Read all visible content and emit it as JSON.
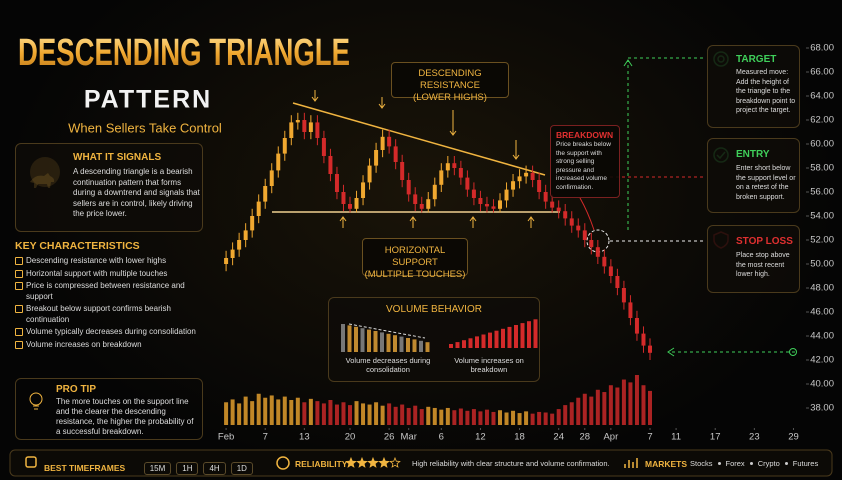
{
  "header": {
    "title": "DESCENDING TRIANGLE",
    "subtitle": "PATTERN",
    "tagline": "When Sellers Take Control"
  },
  "what_it_signals": {
    "title": "WHAT IT SIGNALS",
    "text": "A descending triangle is a bearish continuation pattern that forms during a downtrend and signals that sellers are in control, likely driving the price lower."
  },
  "key_characteristics": {
    "title": "KEY CHARACTERISTICS",
    "items": [
      "Descending resistance with lower highs",
      "Horizontal support with multiple touches",
      "Price is compressed between resistance and support",
      "Breakout below support confirms bearish continuation",
      "Volume typically decreases during consolidation",
      "Volume increases on breakdown"
    ]
  },
  "pro_tip": {
    "title": "PRO TIP",
    "text": "The more touches on the support line and the clearer the descending resistance, the higher the probability of a successful breakdown."
  },
  "annotations": {
    "resistance": [
      "DESCENDING RESISTANCE",
      "(LOWER HIGHS)"
    ],
    "support": [
      "HORIZONTAL SUPPORT",
      "(MULTIPLE TOUCHES)"
    ],
    "breakdown": {
      "title": "BREAKDOWN",
      "text": "Price breaks below the support with strong selling pressure and increased volume confirmation."
    },
    "volume_behavior": {
      "title": "VOLUME BEHAVIOR",
      "left": "Volume decreases during consolidation",
      "right": "Volume increases on breakdown"
    }
  },
  "trade_levels": [
    {
      "title": "TARGET",
      "text": "Measured move: Add the height of the triangle to the breakdown point to project the target."
    },
    {
      "title": "ENTRY",
      "text": "Enter short below the support level or on a retest of the broken support."
    },
    {
      "title": "STOP LOSS",
      "text": "Place stop above the most recent lower high."
    }
  ],
  "footer": {
    "timeframes_title": "BEST TIMEFRAMES",
    "timeframes": [
      "15M",
      "1H",
      "4H",
      "1D"
    ],
    "reliability_title": "RELIABILITY",
    "reliability_stars": 4,
    "reliability_scale": 5,
    "reliability_text": "High reliability with clear structure and volume confirmation.",
    "markets_title": "MARKETS",
    "markets": [
      "Stocks",
      "Forex",
      "Crypto",
      "Futures"
    ]
  },
  "chart_data": {
    "type": "candlestick",
    "up_color": "#f0a830",
    "down_color": "#d42a2a",
    "x": [
      0,
      1,
      2,
      3,
      4,
      5,
      6,
      7,
      8,
      9,
      10,
      11,
      12,
      13,
      14,
      15,
      16,
      17,
      18,
      19,
      20,
      21,
      22,
      23,
      24,
      25,
      26,
      27,
      28,
      29,
      30,
      31,
      32,
      33,
      34,
      35,
      36,
      37,
      38,
      39,
      40,
      41,
      42,
      43,
      44,
      45,
      46,
      47,
      48,
      49,
      50,
      51,
      52,
      53,
      54,
      55,
      56,
      57,
      58,
      59,
      60,
      61,
      62,
      63,
      64,
      65
    ],
    "open": [
      50.0,
      50.5,
      51.2,
      52.0,
      52.8,
      54.0,
      55.2,
      56.5,
      57.8,
      59.2,
      60.5,
      61.8,
      62.0,
      61.0,
      61.8,
      60.5,
      59.0,
      57.5,
      56.0,
      55.0,
      54.6,
      55.5,
      56.8,
      58.2,
      59.5,
      60.6,
      59.8,
      58.5,
      57.0,
      55.8,
      55.0,
      54.6,
      55.4,
      56.6,
      57.8,
      58.4,
      58.0,
      57.2,
      56.2,
      55.5,
      55.0,
      54.8,
      54.6,
      55.3,
      56.2,
      56.9,
      57.3,
      57.6,
      57.0,
      56.0,
      55.2,
      54.7,
      54.4,
      53.8,
      53.2,
      52.8,
      52.0,
      51.4,
      50.6,
      49.8,
      49.0,
      48.0,
      46.8,
      45.5,
      44.2,
      43.2
    ],
    "high": [
      51.1,
      51.8,
      52.6,
      53.4,
      54.6,
      55.8,
      57.1,
      58.4,
      59.8,
      61.1,
      62.4,
      62.6,
      62.6,
      62.4,
      62.4,
      61.1,
      59.6,
      58.1,
      56.6,
      55.6,
      56.1,
      57.4,
      58.8,
      60.1,
      61.2,
      61.2,
      60.4,
      59.1,
      57.6,
      56.4,
      55.6,
      56.0,
      57.2,
      58.4,
      59.0,
      59.0,
      58.6,
      57.8,
      56.8,
      56.1,
      55.6,
      55.4,
      55.9,
      56.8,
      57.5,
      57.9,
      58.2,
      58.2,
      57.6,
      56.6,
      55.8,
      55.3,
      55.0,
      54.4,
      53.8,
      53.4,
      52.6,
      52.0,
      51.2,
      50.4,
      49.6,
      48.6,
      47.4,
      46.1,
      44.8,
      43.8
    ],
    "low": [
      49.4,
      49.9,
      50.6,
      51.4,
      52.2,
      53.4,
      54.6,
      55.9,
      57.2,
      58.6,
      59.9,
      61.2,
      60.4,
      60.4,
      59.9,
      58.4,
      56.9,
      55.4,
      54.4,
      54.3,
      54.3,
      54.9,
      56.2,
      57.6,
      58.9,
      59.2,
      57.9,
      56.4,
      55.2,
      54.4,
      54.3,
      54.3,
      54.8,
      56.0,
      57.2,
      57.4,
      56.6,
      55.6,
      54.9,
      54.4,
      54.3,
      54.3,
      54.3,
      54.7,
      55.6,
      56.3,
      56.7,
      56.4,
      55.4,
      54.6,
      54.3,
      53.8,
      53.2,
      52.6,
      52.2,
      51.4,
      50.8,
      50.0,
      49.2,
      48.4,
      47.4,
      46.2,
      44.9,
      43.6,
      42.6,
      42.0
    ],
    "close": [
      50.5,
      51.2,
      52.0,
      52.8,
      54.0,
      55.2,
      56.5,
      57.8,
      59.2,
      60.5,
      61.8,
      62.0,
      61.0,
      61.8,
      60.5,
      59.0,
      57.5,
      56.0,
      55.0,
      54.6,
      55.5,
      56.8,
      58.2,
      59.5,
      60.6,
      59.8,
      58.5,
      57.0,
      55.8,
      55.0,
      54.6,
      55.4,
      56.6,
      57.8,
      58.4,
      58.0,
      57.2,
      56.2,
      55.5,
      55.0,
      54.8,
      54.6,
      55.3,
      56.2,
      56.9,
      57.3,
      57.6,
      57.0,
      56.0,
      55.2,
      54.7,
      54.4,
      53.8,
      53.2,
      52.8,
      52.0,
      51.4,
      50.6,
      49.8,
      49.0,
      48.0,
      46.8,
      45.5,
      44.2,
      43.2,
      42.6
    ],
    "volume": [
      40,
      45,
      38,
      50,
      42,
      55,
      48,
      52,
      45,
      50,
      44,
      48,
      40,
      46,
      42,
      38,
      44,
      36,
      40,
      35,
      42,
      38,
      36,
      40,
      34,
      38,
      32,
      36,
      30,
      34,
      28,
      32,
      30,
      27,
      30,
      26,
      29,
      25,
      28,
      24,
      27,
      23,
      26,
      22,
      25,
      21,
      24,
      20,
      23,
      22,
      20,
      28,
      35,
      40,
      48,
      55,
      50,
      62,
      58,
      70,
      66,
      80,
      75,
      88,
      70,
      60
    ],
    "xlim": [
      -1.7,
      88
    ],
    "xticks": [
      {
        "value": 0,
        "label": "Feb"
      },
      {
        "value": 6,
        "label": "7"
      },
      {
        "value": 12,
        "label": "13"
      },
      {
        "value": 19,
        "label": "20"
      },
      {
        "value": 25,
        "label": "26"
      },
      {
        "value": 28,
        "label": "Mar"
      },
      {
        "value": 33,
        "label": "6"
      },
      {
        "value": 39,
        "label": "12"
      },
      {
        "value": 45,
        "label": "18"
      },
      {
        "value": 51,
        "label": "24"
      },
      {
        "value": 55,
        "label": "28"
      },
      {
        "value": 59,
        "label": "Apr"
      },
      {
        "value": 65,
        "label": "7"
      },
      {
        "value": 69,
        "label": "11"
      },
      {
        "value": 75,
        "label": "17"
      },
      {
        "value": 81,
        "label": "23"
      },
      {
        "value": 87,
        "label": "29"
      }
    ],
    "ylim": [
      38,
      68
    ],
    "yticks": [
      {
        "value": 38,
        "label": "38.00"
      },
      {
        "value": 40,
        "label": "40.00"
      },
      {
        "value": 42,
        "label": "42.00"
      },
      {
        "value": 44,
        "label": "44.00"
      },
      {
        "value": 46,
        "label": "46.00"
      },
      {
        "value": 48,
        "label": "48.00"
      },
      {
        "value": 50,
        "label": "50.00"
      },
      {
        "value": 52,
        "label": "52.00"
      },
      {
        "value": 54,
        "label": "54.00"
      },
      {
        "value": 56,
        "label": "56.00"
      },
      {
        "value": 58,
        "label": "58.00"
      },
      {
        "value": 60,
        "label": "60.00"
      },
      {
        "value": 62,
        "label": "62.00"
      },
      {
        "value": 64,
        "label": "64.00"
      },
      {
        "value": 66,
        "label": "66.00"
      },
      {
        "value": 68,
        "label": "68.00"
      }
    ]
  }
}
